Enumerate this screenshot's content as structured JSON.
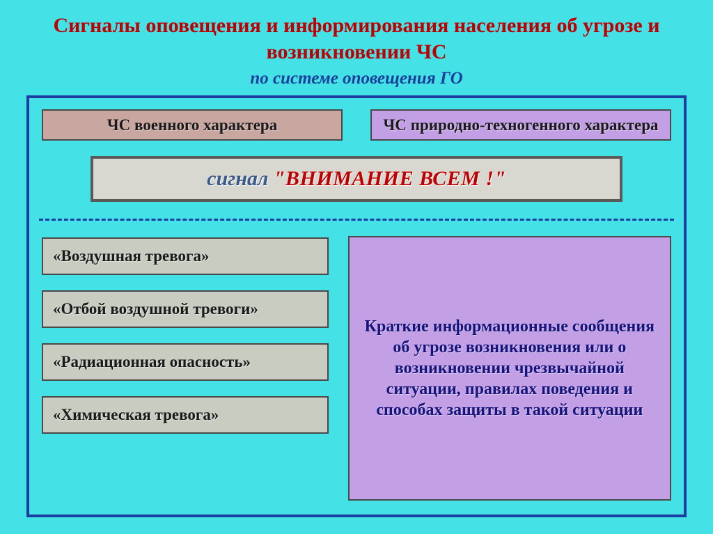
{
  "colors": {
    "pageBg": "#44e2e7",
    "titleColor": "#c00000",
    "subtitleColor": "#1a3f9a",
    "frameBorder": "#1b3ea0",
    "frameBg": "#44e2e7",
    "militaryBg": "#c9a6a0",
    "militaryBorder": "#4a4a4a",
    "militaryText": "#1a1a1a",
    "naturalBg": "#c3a0e6",
    "naturalBorder": "#4a4a4a",
    "naturalText": "#1a1a1a",
    "signalBg": "#d8d8d0",
    "signalBorder": "#5a5a5a",
    "signalPreColor": "#3a5a8a",
    "signalMainColor": "#c00000",
    "dashedColor": "#1b3ea0",
    "alertBg": "#c9cdc1",
    "alertBorder": "#4a4a4a",
    "alertText": "#1a1a1a",
    "infoBg": "#c3a0e6",
    "infoBorder": "#4a4a4a",
    "infoText": "#14147a"
  },
  "title": "Сигналы  оповещения  и  информирования  населения  об   угрозе   и   возникновении   ЧС",
  "subtitle": "по  системе  оповещения  ГО",
  "category": {
    "military": "ЧС  военного  характера",
    "natural": "ЧС  природно-техногенного  характера"
  },
  "signal": {
    "prefix": "сигнал   ",
    "main": "\"ВНИМАНИЕ  ВСЕМ !\""
  },
  "alerts": [
    "«Воздушная  тревога»",
    "«Отбой  воздушной  тревоги»",
    "«Радиационная   опасность»",
    "«Химическая   тревога»"
  ],
  "info": "Краткие  информационные  сообщения  об  угрозе  возникновения  или  о  возникновении  чрезвычайной  ситуации,  правилах  поведения  и  способах  защиты  в  такой  ситуации"
}
